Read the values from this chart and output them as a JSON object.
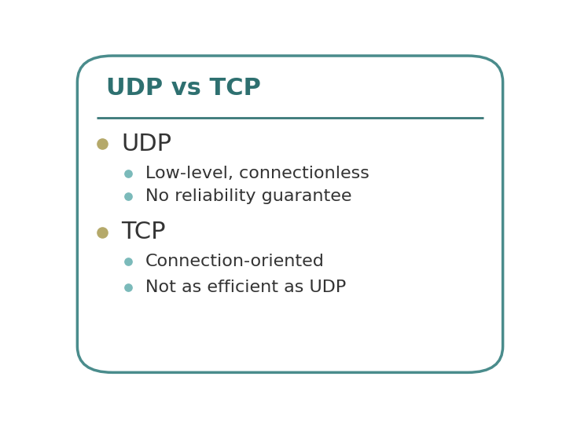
{
  "title": "UDP vs TCP",
  "title_color": "#2E7070",
  "title_fontsize": 22,
  "title_bold": true,
  "background_color": "#FFFFFF",
  "border_color": "#4A8C8C",
  "border_linewidth": 2.5,
  "separator_color": "#3A7878",
  "items": [
    {
      "label": "UDP",
      "level": 1,
      "fontsize": 22,
      "bold": false,
      "bullet_color": "#B5A96A",
      "text_color": "#333333"
    },
    {
      "label": "Low-level, connectionless",
      "level": 2,
      "fontsize": 16,
      "bold": false,
      "bullet_color": "#7BBABA",
      "text_color": "#333333"
    },
    {
      "label": "No reliability guarantee",
      "level": 2,
      "fontsize": 16,
      "bold": false,
      "bullet_color": "#7BBABA",
      "text_color": "#333333"
    },
    {
      "label": "TCP",
      "level": 1,
      "fontsize": 22,
      "bold": false,
      "bullet_color": "#B5A96A",
      "text_color": "#333333"
    },
    {
      "label": "Connection-oriented",
      "level": 2,
      "fontsize": 16,
      "bold": false,
      "bullet_color": "#7BBABA",
      "text_color": "#333333"
    },
    {
      "label": "Not as efficient as UDP",
      "level": 2,
      "fontsize": 16,
      "bold": false,
      "bullet_color": "#7BBABA",
      "text_color": "#333333"
    }
  ]
}
